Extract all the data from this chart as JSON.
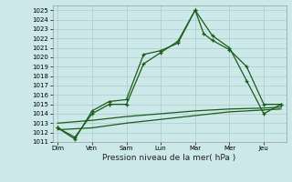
{
  "background_color": "#cce8e8",
  "grid_color": "#aacccc",
  "line_color": "#1a5c1a",
  "title": "Pression niveau de la mer( hPa )",
  "x_labels": [
    "Dim",
    "Ven",
    "Sam",
    "Lun",
    "Mar",
    "Mer",
    "Jeu"
  ],
  "ylim": [
    1011,
    1025.5
  ],
  "yticks": [
    1011,
    1012,
    1013,
    1014,
    1015,
    1016,
    1017,
    1018,
    1019,
    1020,
    1021,
    1022,
    1023,
    1024,
    1025
  ],
  "line1_x": [
    0,
    0.5,
    1.0,
    1.5,
    2.0,
    2.5,
    3.0,
    3.5,
    4.0,
    4.25,
    4.5,
    5.0,
    5.5,
    6.0,
    6.5
  ],
  "line1_y": [
    1012.5,
    1011.3,
    1014.3,
    1015.3,
    1015.5,
    1020.3,
    1020.7,
    1021.5,
    1025.0,
    1022.5,
    1021.8,
    1020.8,
    1019.0,
    1015.0,
    1015.0
  ],
  "line2_x": [
    0,
    0.5,
    1.0,
    1.5,
    2.0,
    2.5,
    3.0,
    3.5,
    4.0,
    4.5,
    5.0,
    5.5,
    6.0,
    6.5
  ],
  "line2_y": [
    1012.5,
    1011.5,
    1014.0,
    1015.0,
    1015.0,
    1019.3,
    1020.5,
    1021.7,
    1025.0,
    1022.3,
    1021.0,
    1017.5,
    1014.0,
    1015.0
  ],
  "line3_x": [
    0,
    1.0,
    2.0,
    3.0,
    4.0,
    5.0,
    6.0,
    6.5
  ],
  "line3_y": [
    1013.0,
    1013.3,
    1013.7,
    1014.0,
    1014.3,
    1014.5,
    1014.6,
    1014.7
  ],
  "line4_x": [
    0,
    1.0,
    2.0,
    3.0,
    4.0,
    5.0,
    6.0,
    6.5
  ],
  "line4_y": [
    1012.3,
    1012.5,
    1013.0,
    1013.4,
    1013.8,
    1014.2,
    1014.4,
    1014.5
  ]
}
